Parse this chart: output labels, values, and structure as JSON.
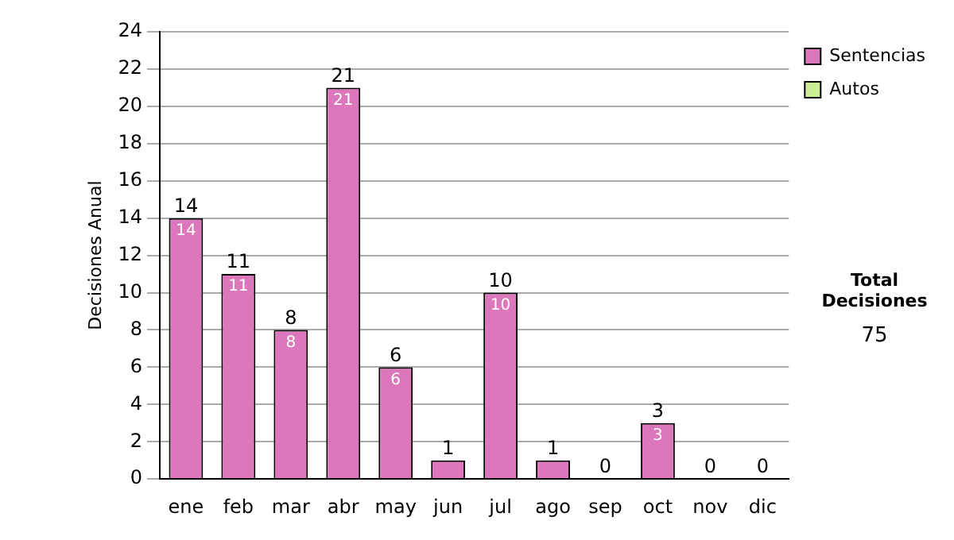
{
  "chart_data": {
    "type": "bar",
    "stacked": true,
    "ylabel": "Decisiones Anual",
    "categories": [
      "ene",
      "feb",
      "mar",
      "abr",
      "may",
      "jun",
      "jul",
      "ago",
      "sep",
      "oct",
      "nov",
      "dic"
    ],
    "series": [
      {
        "name": "Sentencias",
        "color": "#dd77bb",
        "values": [
          14,
          11,
          8,
          21,
          6,
          1,
          10,
          1,
          0,
          3,
          0,
          0
        ],
        "value_labels": [
          "14",
          "11",
          "8",
          "21",
          "6",
          null,
          "10",
          null,
          null,
          "3",
          null,
          null
        ]
      },
      {
        "name": "Autos",
        "color": "#ccee99",
        "values": [
          0,
          0,
          0,
          0,
          0,
          0,
          0,
          0,
          0,
          0,
          0,
          0
        ]
      }
    ],
    "totals": [
      "14",
      "11",
      "8",
      "21",
      "6",
      "1",
      "10",
      "1",
      "0",
      "3",
      "0",
      "0"
    ],
    "ylim": [
      0,
      24
    ],
    "yticks": [
      0,
      2,
      4,
      6,
      8,
      10,
      12,
      14,
      16,
      18,
      20,
      22,
      24
    ],
    "grid": "y",
    "legend": "right",
    "annotations": [
      "Total Decisiones",
      "75"
    ]
  }
}
